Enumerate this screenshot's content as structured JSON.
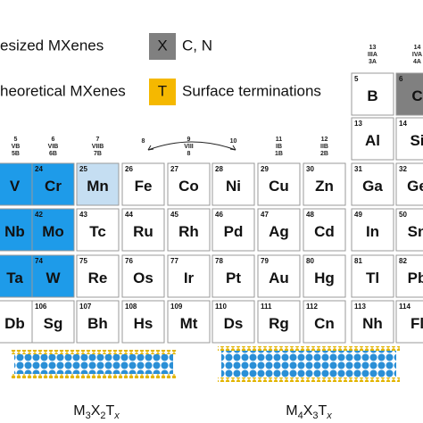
{
  "legend": [
    {
      "text": "esized MXenes",
      "box": "X",
      "box_color": "#808080",
      "note": "C, N"
    },
    {
      "text": "heoretical MXenes",
      "box": "T",
      "box_color": "#f5b800",
      "note": "Surface terminations"
    }
  ],
  "groups": [
    {
      "number": "5",
      "roman": "VB",
      "alt": "5B"
    },
    {
      "number": "6",
      "roman": "VIB",
      "alt": "6B"
    },
    {
      "number": "7",
      "roman": "VIIB",
      "alt": "7B"
    },
    {
      "number": "8"
    },
    {
      "number": "9",
      "roman": "VIII",
      "alt": "8"
    },
    {
      "number": "10"
    },
    {
      "number": "11",
      "roman": "IB",
      "alt": "1B"
    },
    {
      "number": "12",
      "roman": "IIB",
      "alt": "2B"
    },
    {
      "number": "13",
      "roman": "IIIA",
      "alt": "3A"
    },
    {
      "number": "14",
      "roman": "IVA",
      "alt": "4A"
    }
  ],
  "rows": [
    [
      null,
      null,
      null,
      null,
      null,
      null,
      null,
      null,
      {
        "symbol": "B",
        "number": "5",
        "color": "#ffffff"
      },
      {
        "symbol": "C",
        "number": "6",
        "color": "#808080"
      }
    ],
    [
      null,
      null,
      null,
      null,
      null,
      null,
      null,
      null,
      {
        "symbol": "Al",
        "number": "13",
        "color": "#ffffff"
      },
      {
        "symbol": "Si",
        "number": "14",
        "color": "#ffffff"
      }
    ],
    [
      {
        "symbol": "V",
        "color": "#1e9be9"
      },
      {
        "symbol": "Cr",
        "number": "24",
        "color": "#1e9be9"
      },
      {
        "symbol": "Mn",
        "number": "25",
        "color": "#c5def2"
      },
      {
        "symbol": "Fe",
        "number": "26",
        "color": "#ffffff"
      },
      {
        "symbol": "Co",
        "number": "27",
        "color": "#ffffff"
      },
      {
        "symbol": "Ni",
        "number": "28",
        "color": "#ffffff"
      },
      {
        "symbol": "Cu",
        "number": "29",
        "color": "#ffffff"
      },
      {
        "symbol": "Zn",
        "number": "30",
        "color": "#ffffff"
      },
      {
        "symbol": "Ga",
        "number": "31",
        "color": "#ffffff"
      },
      {
        "symbol": "Ge",
        "number": "32",
        "color": "#ffffff"
      }
    ],
    [
      {
        "symbol": "Nb",
        "color": "#1e9be9"
      },
      {
        "symbol": "Mo",
        "number": "42",
        "color": "#1e9be9"
      },
      {
        "symbol": "Tc",
        "number": "43",
        "color": "#ffffff"
      },
      {
        "symbol": "Ru",
        "number": "44",
        "color": "#ffffff"
      },
      {
        "symbol": "Rh",
        "number": "45",
        "color": "#ffffff"
      },
      {
        "symbol": "Pd",
        "number": "46",
        "color": "#ffffff"
      },
      {
        "symbol": "Ag",
        "number": "47",
        "color": "#ffffff"
      },
      {
        "symbol": "Cd",
        "number": "48",
        "color": "#ffffff"
      },
      {
        "symbol": "In",
        "number": "49",
        "color": "#ffffff"
      },
      {
        "symbol": "Sn",
        "number": "50",
        "color": "#ffffff"
      }
    ],
    [
      {
        "symbol": "Ta",
        "color": "#1e9be9"
      },
      {
        "symbol": "W",
        "number": "74",
        "color": "#1e9be9"
      },
      {
        "symbol": "Re",
        "number": "75",
        "color": "#ffffff"
      },
      {
        "symbol": "Os",
        "number": "76",
        "color": "#ffffff"
      },
      {
        "symbol": "Ir",
        "number": "77",
        "color": "#ffffff"
      },
      {
        "symbol": "Pt",
        "number": "78",
        "color": "#ffffff"
      },
      {
        "symbol": "Au",
        "number": "79",
        "color": "#ffffff"
      },
      {
        "symbol": "Hg",
        "number": "80",
        "color": "#ffffff"
      },
      {
        "symbol": "Tl",
        "number": "81",
        "color": "#ffffff"
      },
      {
        "symbol": "Pb",
        "number": "82",
        "color": "#ffffff"
      }
    ],
    [
      {
        "symbol": "Db",
        "color": "#ffffff"
      },
      {
        "symbol": "Sg",
        "number": "106",
        "color": "#ffffff"
      },
      {
        "symbol": "Bh",
        "number": "107",
        "color": "#ffffff"
      },
      {
        "symbol": "Hs",
        "number": "108",
        "color": "#ffffff"
      },
      {
        "symbol": "Mt",
        "number": "109",
        "color": "#ffffff"
      },
      {
        "symbol": "Ds",
        "number": "110",
        "color": "#ffffff"
      },
      {
        "symbol": "Rg",
        "number": "111",
        "color": "#ffffff"
      },
      {
        "symbol": "Cn",
        "number": "112",
        "color": "#ffffff"
      },
      {
        "symbol": "Nh",
        "number": "113",
        "color": "#ffffff"
      },
      {
        "symbol": "Fl",
        "number": "114",
        "color": "#ffffff"
      }
    ]
  ],
  "structures": [
    {
      "label": "M<sub>3</sub>X<sub>2</sub>T<sub>x</sub>",
      "m": "M",
      "m_sub": "3",
      "x": "X",
      "x_sub": "2",
      "t": "T",
      "t_sub": "x"
    },
    {
      "m": "M",
      "m_sub": "4",
      "x": "X",
      "x_sub": "3",
      "t": "T",
      "t_sub": "x"
    }
  ]
}
